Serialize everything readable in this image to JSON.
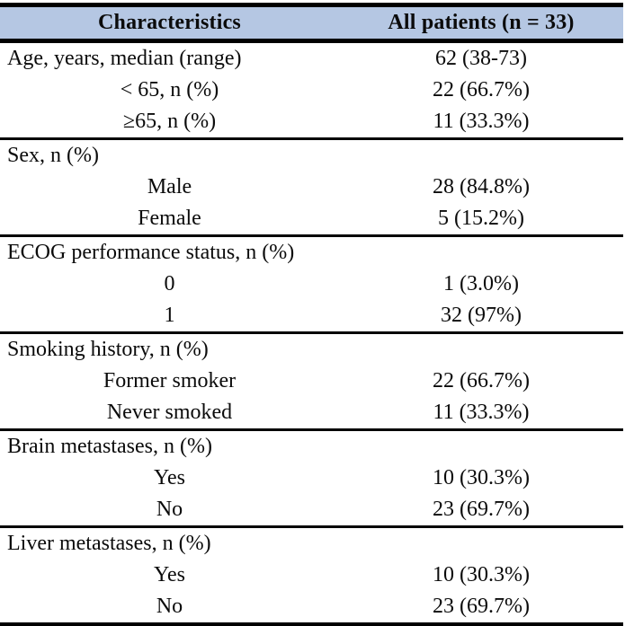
{
  "table": {
    "title_semantic": "patient-characteristics-table",
    "header": {
      "col1": "Characteristics",
      "col2": "All patients (n = 33)",
      "background": "#b5c7e3"
    },
    "colors": {
      "border": "#000000",
      "text": "#0b0b0b",
      "page_background": "#ffffff"
    },
    "sections": [
      {
        "rows": [
          {
            "label": "Age, years, median (range)",
            "value": "62 (38-73)",
            "align": "left"
          },
          {
            "label": "< 65, n (%)",
            "value": "22 (66.7%)",
            "align": "center"
          },
          {
            "label": "≥65, n (%)",
            "value": "11 (33.3%)",
            "align": "center"
          }
        ]
      },
      {
        "rows": [
          {
            "label": "Sex, n (%)",
            "value": "",
            "align": "left"
          },
          {
            "label": "Male",
            "value": "28 (84.8%)",
            "align": "center"
          },
          {
            "label": "Female",
            "value": "5 (15.2%)",
            "align": "center"
          }
        ]
      },
      {
        "rows": [
          {
            "label": "ECOG performance status, n (%)",
            "value": "",
            "align": "left"
          },
          {
            "label": "0",
            "value": "1 (3.0%)",
            "align": "center"
          },
          {
            "label": "1",
            "value": "32 (97%)",
            "align": "center"
          }
        ]
      },
      {
        "rows": [
          {
            "label": "Smoking history, n (%)",
            "value": "",
            "align": "left"
          },
          {
            "label": "Former smoker",
            "value": "22 (66.7%)",
            "align": "center"
          },
          {
            "label": "Never smoked",
            "value": "11 (33.3%)",
            "align": "center"
          }
        ]
      },
      {
        "rows": [
          {
            "label": "Brain metastases, n (%)",
            "value": "",
            "align": "left"
          },
          {
            "label": "Yes",
            "value": "10 (30.3%)",
            "align": "center"
          },
          {
            "label": "No",
            "value": "23 (69.7%)",
            "align": "center"
          }
        ]
      },
      {
        "rows": [
          {
            "label": "Liver metastases, n (%)",
            "value": "",
            "align": "left"
          },
          {
            "label": "Yes",
            "value": "10 (30.3%)",
            "align": "center"
          },
          {
            "label": "No",
            "value": "23 (69.7%)",
            "align": "center"
          }
        ]
      }
    ]
  }
}
